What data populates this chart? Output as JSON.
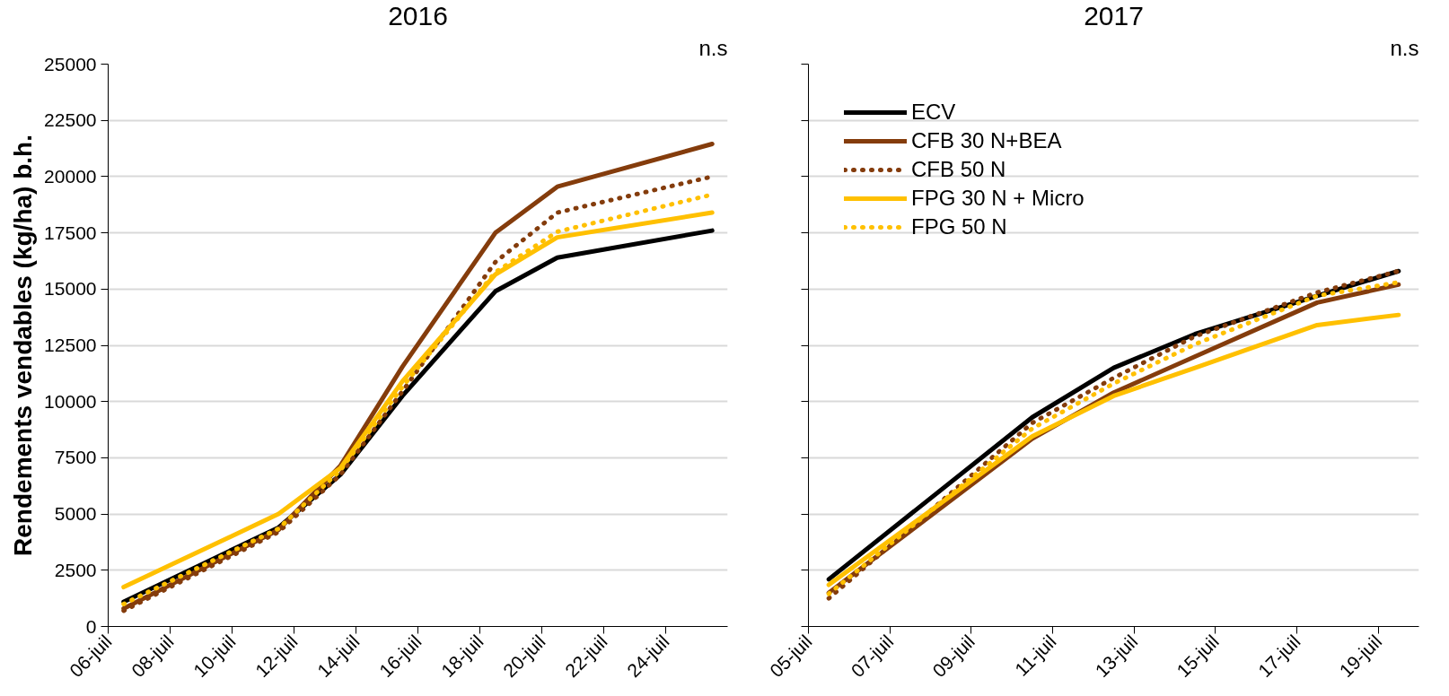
{
  "chart_data": [
    {
      "type": "line",
      "title": "2016",
      "ylabel": "Rendements vendables (kg/ha) b.h.",
      "annotations": [
        "n.s"
      ],
      "x": [
        "2016-07-06T12:00",
        "2016-07-11T12:00",
        "2016-07-13T12:00",
        "2016-07-15T12:00",
        "2016-07-18T12:00",
        "2016-07-20T12:00",
        "2016-07-25T12:00"
      ],
      "series": [
        {
          "color": "#000000",
          "line_style": "solid",
          "values": [
            1100,
            4400,
            6750,
            10250,
            14900,
            16400,
            17600
          ]
        },
        {
          "color": "#843c0c",
          "line_style": "solid",
          "values": [
            800,
            4300,
            7150,
            11550,
            17500,
            19550,
            21450
          ]
        },
        {
          "color": "#843c0c",
          "line_style": "dotted",
          "values": [
            700,
            4200,
            6750,
            10450,
            16200,
            18400,
            20000
          ]
        },
        {
          "color": "#ffc000",
          "line_style": "solid",
          "values": [
            1750,
            5000,
            7050,
            10900,
            15650,
            17300,
            18400
          ]
        },
        {
          "color": "#ffc000",
          "line_style": "dotted",
          "values": [
            1000,
            4350,
            6950,
            10650,
            15750,
            17550,
            19200
          ]
        }
      ],
      "xlim": [
        "2016-07-06",
        "2016-07-26"
      ],
      "xticks": [
        {
          "value": "2016-07-06",
          "label": "06-juil"
        },
        {
          "value": "2016-07-08",
          "label": "08-juil"
        },
        {
          "value": "2016-07-10",
          "label": "10-juil"
        },
        {
          "value": "2016-07-12",
          "label": "12-juil"
        },
        {
          "value": "2016-07-14",
          "label": "14-juil"
        },
        {
          "value": "2016-07-16",
          "label": "16-juil"
        },
        {
          "value": "2016-07-18",
          "label": "18-juil"
        },
        {
          "value": "2016-07-20",
          "label": "20-juil"
        },
        {
          "value": "2016-07-22",
          "label": "22-juil"
        },
        {
          "value": "2016-07-24",
          "label": "24-juil"
        }
      ],
      "ylim": [
        0,
        25000
      ],
      "yticks": [
        0,
        2500,
        5000,
        7500,
        10000,
        12500,
        15000,
        17500,
        20000,
        22500,
        25000
      ],
      "grid": "y",
      "legend": false,
      "marker": "none"
    },
    {
      "type": "line",
      "title": "2017",
      "annotations": [
        "n.s"
      ],
      "x": [
        "2017-07-05T12:00",
        "2017-07-10T12:00",
        "2017-07-12T12:00",
        "2017-07-14T12:00",
        "2017-07-17T12:00",
        "2017-07-19T12:00"
      ],
      "series": [
        {
          "name": "ECV",
          "color": "#000000",
          "line_style": "solid",
          "values": [
            2100,
            9300,
            11500,
            13000,
            14700,
            15800
          ]
        },
        {
          "name": "CFB 30 N+BEA",
          "color": "#843c0c",
          "line_style": "solid",
          "values": [
            1500,
            8350,
            10400,
            12000,
            14400,
            15200
          ]
        },
        {
          "name": "CFB 50 N",
          "color": "#843c0c",
          "line_style": "dotted",
          "values": [
            1250,
            9050,
            11050,
            12900,
            14850,
            15800
          ]
        },
        {
          "name": "FPG 30 N + Micro",
          "color": "#ffc000",
          "line_style": "solid",
          "values": [
            1850,
            8450,
            10250,
            11500,
            13400,
            13850
          ]
        },
        {
          "name": "FPG 50 N",
          "color": "#ffc000",
          "line_style": "dotted",
          "values": [
            1450,
            8800,
            10800,
            12550,
            14700,
            15300
          ]
        }
      ],
      "xlim": [
        "2017-07-05",
        "2017-07-20"
      ],
      "xticks": [
        {
          "value": "2017-07-05",
          "label": "05-juil"
        },
        {
          "value": "2017-07-07",
          "label": "07-juil"
        },
        {
          "value": "2017-07-09",
          "label": "09-juil"
        },
        {
          "value": "2017-07-11",
          "label": "11-juil"
        },
        {
          "value": "2017-07-13",
          "label": "13-juil"
        },
        {
          "value": "2017-07-15",
          "label": "15-juil"
        },
        {
          "value": "2017-07-17",
          "label": "17-juil"
        },
        {
          "value": "2017-07-19",
          "label": "19-juil"
        }
      ],
      "ylim": [
        0,
        25000
      ],
      "yticks": [
        0,
        2500,
        5000,
        7500,
        10000,
        12500,
        15000,
        17500,
        20000,
        22500,
        25000
      ],
      "tick_labels": "x",
      "grid": "y",
      "legend": "top left",
      "marker": "none"
    }
  ]
}
